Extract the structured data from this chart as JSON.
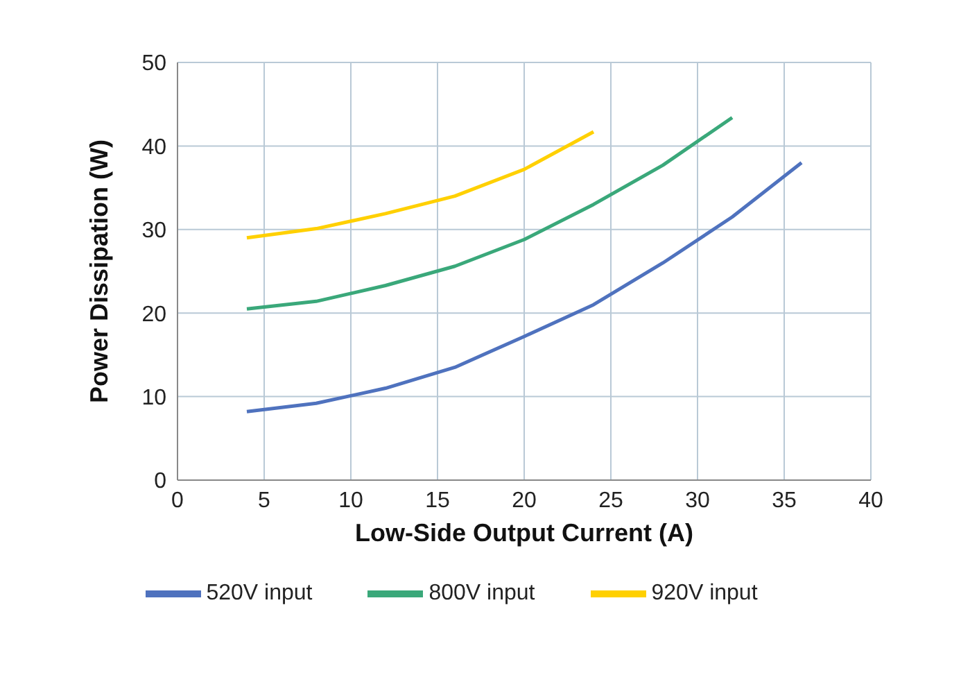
{
  "chart_data": {
    "type": "line",
    "xlabel": "Low-Side Output Current (A)",
    "ylabel": "Power Dissipation (W)",
    "x": [
      4,
      8,
      12,
      16,
      20,
      24,
      28,
      32,
      36
    ],
    "series": [
      {
        "name": "520V input",
        "color": "#4f72be",
        "values": [
          8.2,
          9.2,
          11,
          13.5,
          17.2,
          21,
          26,
          31.5,
          38
        ]
      },
      {
        "name": "800V input",
        "color": "#3aa87a",
        "values": [
          20.5,
          21.4,
          23.3,
          25.6,
          28.8,
          33,
          37.7,
          43.4,
          null
        ]
      },
      {
        "name": "920V input",
        "color": "#ffd000",
        "values": [
          29,
          30.1,
          31.9,
          34,
          37.2,
          41.7,
          null,
          null,
          null
        ]
      }
    ],
    "xlim": [
      0,
      40
    ],
    "xticks": [
      0,
      5,
      10,
      15,
      20,
      25,
      30,
      35,
      40
    ],
    "ylim": [
      0,
      50
    ],
    "yticks": [
      0,
      10,
      20,
      30,
      40,
      50
    ],
    "grid": true,
    "legend": "bottom",
    "marker": "none",
    "line_style": "solid"
  }
}
